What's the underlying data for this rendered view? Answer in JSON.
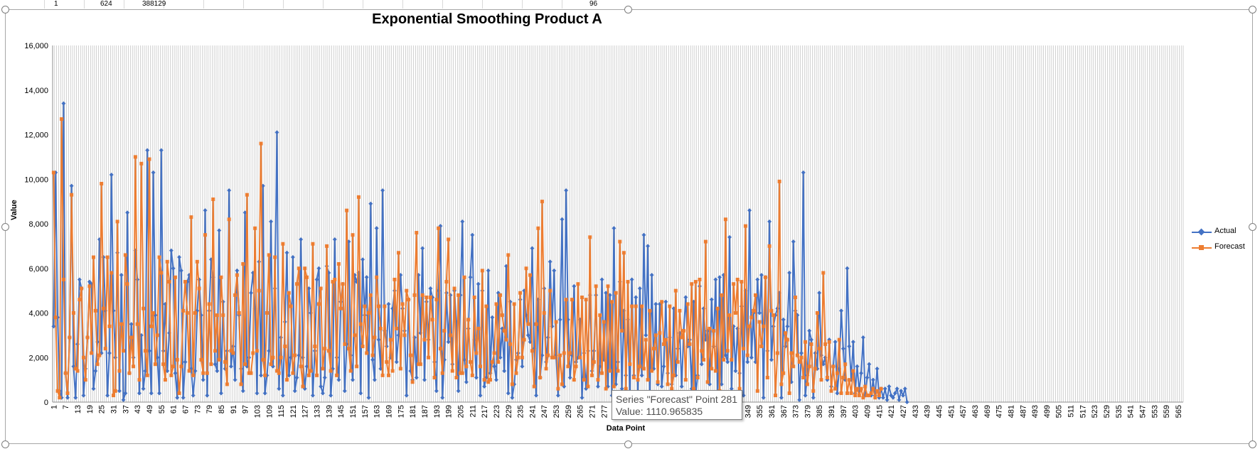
{
  "sheet": {
    "cells": [
      "1",
      "624",
      "388129",
      "96"
    ]
  },
  "tooltip": {
    "line1": "Series \"Forecast\" Point 281",
    "line2": "Value: 1110.965835"
  },
  "chart_data": {
    "type": "line",
    "title": "Exponential Smoothing Product A",
    "xlabel": "Data Point",
    "ylabel": "Value",
    "ylim": [
      0,
      16000
    ],
    "yticks": [
      0,
      2000,
      4000,
      6000,
      8000,
      10000,
      12000,
      14000,
      16000
    ],
    "ytick_labels": [
      "0",
      "2,000",
      "4,000",
      "6,000",
      "8,000",
      "10,000",
      "12,000",
      "14,000",
      "16,000"
    ],
    "x_count": 567,
    "x_tick_labels": [
      "1",
      "7",
      "13",
      "19",
      "25",
      "31",
      "37",
      "43",
      "49",
      "55",
      "61",
      "67",
      "73",
      "79",
      "85",
      "91",
      "97",
      "103",
      "109",
      "115",
      "121",
      "127",
      "133",
      "139",
      "145",
      "151",
      "157",
      "163",
      "169",
      "175",
      "181",
      "187",
      "193",
      "199",
      "205",
      "211",
      "217",
      "223",
      "229",
      "235",
      "241",
      "247",
      "253",
      "259",
      "265",
      "271",
      "277",
      "283",
      "289",
      "295",
      "301",
      "307",
      "313",
      "319",
      "325",
      "331",
      "337",
      "343",
      "349",
      "355",
      "361",
      "367",
      "373",
      "379",
      "385",
      "391",
      "397",
      "403",
      "409",
      "415",
      "421",
      "427",
      "433",
      "439",
      "445",
      "451",
      "457",
      "463",
      "469",
      "475",
      "481",
      "487",
      "493",
      "499",
      "505",
      "511",
      "517",
      "523",
      "529",
      "535",
      "541",
      "547",
      "553",
      "559",
      "565"
    ],
    "grid": "vertical",
    "legend_position": "right",
    "colors": {
      "actual": "#4472C4",
      "forecast": "#ED7D31"
    },
    "series": [
      {
        "name": "Actual",
        "values": [
          3400,
          10300,
          3800,
          500,
          200,
          13400,
          1300,
          200,
          2900,
          9700,
          1600,
          200,
          2600,
          5500,
          5100,
          300,
          1500,
          2900,
          5400,
          5300,
          600,
          1400,
          2700,
          7300,
          2200,
          6500,
          4100,
          300,
          2200,
          10200,
          4100,
          2000,
          6700,
          500,
          5700,
          100,
          400,
          8500,
          1300,
          3500,
          2000,
          6800,
          5500,
          400,
          3000,
          600,
          1400,
          11300,
          2300,
          400,
          10300,
          3900,
          2000,
          400,
          11300,
          2300,
          4400,
          1400,
          3100,
          6800,
          6000,
          1300,
          200,
          6500,
          5900,
          200,
          1800,
          5400,
          5700,
          1500,
          300,
          1400,
          4100,
          5500,
          3900,
          1000,
          8600,
          300,
          4100,
          6400,
          5600,
          1700,
          1400,
          7700,
          400,
          4500,
          1500,
          2300,
          9500,
          1600,
          2500,
          1000,
          5900,
          3900,
          1500,
          500,
          8500,
          1600,
          2000,
          4900,
          5800,
          4200,
          400,
          6300,
          1200,
          9700,
          400,
          1200,
          2300,
          8100,
          1600,
          5100,
          12100,
          600,
          2900,
          300,
          3600,
          6700,
          1200,
          2000,
          6500,
          500,
          1100,
          2100,
          7300,
          2000,
          600,
          1600,
          5100,
          4000,
          300,
          2300,
          5500,
          6000,
          700,
          400,
          1100,
          6100,
          5800,
          300,
          1500,
          7300,
          2000,
          1000,
          4500,
          5300,
          500,
          2600,
          7200,
          2100,
          1000,
          5700,
          5400,
          5800,
          400,
          6400,
          3900,
          5600,
          200,
          8900,
          1900,
          1000,
          7800,
          2800,
          1500,
          9500,
          3200,
          2500,
          4400,
          2000,
          4200,
          5000,
          1800,
          3000,
          5700,
          4200,
          3200,
          300,
          4600,
          1400,
          1000,
          2900,
          1100,
          5700,
          3100,
          6900,
          1000,
          4500,
          2800,
          5100,
          4700,
          1800,
          500,
          5000,
          7900,
          200,
          1900,
          4900,
          2700,
          4800,
          1700,
          5000,
          3600,
          500,
          4800,
          8100,
          1900,
          900,
          3300,
          5600,
          7500,
          2800,
          1100,
          5300,
          300,
          5000,
          700,
          1100,
          5900,
          1300,
          3800,
          1600,
          1000,
          4900,
          2000,
          3300,
          1400,
          6100,
          400,
          4500,
          200,
          800,
          1900,
          2200,
          4600,
          1600,
          5000,
          3900,
          3000,
          2700,
          6900,
          2400,
          300,
          4600,
          1100,
          2100,
          5100,
          1800,
          2900,
          6300,
          3400,
          5900,
          2100,
          300,
          3700,
          8200,
          700,
          9500,
          3700,
          1100,
          2100,
          5200,
          1800,
          2000,
          3700,
          200,
          2200,
          600,
          2300,
          4800,
          1400,
          2300,
          4800,
          700,
          1600,
          5500,
          1900,
          4900,
          700,
          4800,
          300,
          7800,
          800,
          1800,
          5400,
          600,
          4100,
          1200,
          3700,
          200,
          5500,
          1200,
          4700,
          300,
          5100,
          1200,
          7500,
          3000,
          7000,
          100,
          5700,
          1500,
          4400,
          800,
          4400,
          700,
          1600,
          4500,
          1300,
          2900,
          800,
          4200,
          1200,
          2400,
          3100,
          700,
          3200,
          4700,
          2500,
          2800,
          600,
          4500,
          300,
          1200,
          5200,
          1700,
          4200,
          2800,
          3200,
          800,
          4600,
          2500,
          5500,
          300,
          5600,
          800,
          5700,
          2100,
          1800,
          7400,
          600,
          3400,
          1400,
          3300,
          1300,
          4300,
          300,
          5000,
          1800,
          8600,
          2000,
          4000,
          1800,
          5500,
          4000,
          5700,
          200,
          5600,
          2300,
          8100,
          1900,
          3400,
          3900,
          4200,
          4900,
          200,
          3700,
          2500,
          3400,
          5800,
          900,
          7200,
          4100,
          3900,
          100,
          2200,
          10300,
          300,
          1200,
          3200,
          2800,
          200,
          2200,
          1500,
          4900,
          2100,
          1700,
          2000,
          1000,
          2800,
          700,
          1600,
          2700,
          400,
          1500,
          4100,
          2400,
          1000,
          6000,
          2500,
          1000,
          2700,
          400,
          1600,
          500,
          1300,
          2900,
          300,
          1100,
          1700,
          300,
          1000,
          300,
          1500,
          200,
          600,
          200,
          600,
          100,
          700,
          300,
          200,
          400,
          600,
          100,
          500,
          300,
          600,
          0
        ]
      },
      {
        "name": "Forecast",
        "values": [
          10300,
          3800,
          500,
          200,
          12700,
          5500,
          1300,
          400,
          2900,
          9300,
          4000,
          1500,
          1400,
          4600,
          5100,
          2000,
          1000,
          2900,
          5200,
          2200,
          6500,
          4100,
          1700,
          2100,
          9800,
          4200,
          2400,
          6500,
          3400,
          5800,
          300,
          500,
          8100,
          1400,
          3500,
          2300,
          6600,
          5300,
          1300,
          2900,
          1600,
          11000,
          3500,
          1000,
          10700,
          4200,
          2300,
          1200,
          10900,
          3400,
          4000,
          1700,
          3000,
          6500,
          5800,
          1700,
          1000,
          6300,
          5400,
          1200,
          1600,
          5600,
          1900,
          400,
          1600,
          4100,
          5400,
          4000,
          1400,
          8300,
          1200,
          4000,
          6300,
          5100,
          1900,
          1300,
          7500,
          1300,
          4400,
          1700,
          9100,
          2300,
          3900,
          1900,
          5600,
          3900,
          1800,
          800,
          8200,
          2300,
          2200,
          4800,
          5700,
          4000,
          800,
          6200,
          1700,
          9300,
          1300,
          1300,
          2200,
          7800,
          2300,
          5000,
          11600,
          1900,
          1200,
          4000,
          6600,
          1700,
          2000,
          6500,
          1400,
          1300,
          2000,
          7100,
          2500,
          1000,
          4900,
          4300,
          1300,
          2100,
          5300,
          6000,
          1600,
          700,
          6000,
          5600,
          1200,
          1400,
          7100,
          2500,
          1200,
          4400,
          5100,
          1500,
          2400,
          7000,
          2300,
          1400,
          5400,
          5500,
          1200,
          6200,
          4200,
          5300,
          2600,
          8600,
          2400,
          1400,
          7500,
          3000,
          1600,
          9200,
          3500,
          2500,
          4300,
          2200,
          4000,
          4800,
          2100,
          2900,
          5600,
          4300,
          3300,
          1200,
          4300,
          1800,
          1200,
          2800,
          1400,
          5500,
          3300,
          6700,
          1500,
          4400,
          3000,
          5000,
          4600,
          2100,
          900,
          4800,
          7600,
          1700,
          1700,
          4800,
          2800,
          4700,
          2000,
          4700,
          3700,
          1100,
          4600,
          7800,
          2400,
          1300,
          3200,
          5400,
          7300,
          3000,
          1400,
          5100,
          1100,
          4800,
          1300,
          1300,
          5600,
          1600,
          3700,
          1800,
          1200,
          4700,
          2200,
          3300,
          1600,
          5900,
          1000,
          4300,
          900,
          1000,
          1800,
          2200,
          4400,
          1800,
          4800,
          3900,
          3200,
          2800,
          6600,
          2600,
          800,
          4400,
          1300,
          2000,
          4900,
          2000,
          2800,
          6000,
          3500,
          5700,
          2300,
          700,
          3500,
          7800,
          1100,
          9000,
          4000,
          1500,
          2100,
          5000,
          2000,
          2000,
          3600,
          600,
          2100,
          800,
          2200,
          4600,
          1600,
          2200,
          4600,
          1000,
          1600,
          5300,
          2000,
          4700,
          1000,
          4600,
          700,
          7400,
          1200,
          1800,
          5200,
          1000,
          3900,
          1300,
          3600,
          600,
          5200,
          1400,
          4500,
          700,
          4900,
          1400,
          7200,
          3200,
          6700,
          600,
          5400,
          1700,
          4300,
          1100,
          4300,
          1000,
          1600,
          4300,
          1500,
          2800,
          1000,
          4100,
          1400,
          2400,
          3000,
          900,
          3100,
          4500,
          2600,
          2800,
          800,
          4300,
          600,
          1200,
          5000,
          1800,
          4100,
          2900,
          3200,
          1000,
          4400,
          2600,
          5300,
          600,
          5400,
          1100,
          5500,
          2300,
          1900,
          7200,
          900,
          3300,
          1500,
          3200,
          1400,
          4200,
          500,
          4800,
          1900,
          8200,
          2300,
          3900,
          1900,
          5300,
          4000,
          5500,
          600,
          5400,
          2400,
          7900,
          2100,
          3400,
          3800,
          4100,
          4800,
          500,
          3600,
          2500,
          3400,
          5600,
          1100,
          7000,
          4100,
          3900,
          300,
          2200,
          9900,
          800,
          1300,
          3100,
          2800,
          400,
          2200,
          1600,
          4700,
          2100,
          1800,
          2000,
          1100,
          2700,
          800,
          1600,
          2600,
          500,
          1500,
          4000,
          2400,
          1000,
          5800,
          2600,
          1100,
          2700,
          500,
          1600,
          600,
          1300,
          2800,
          400,
          1100,
          1700,
          400,
          1000,
          400,
          1400,
          300,
          600,
          300,
          600,
          200,
          700,
          300,
          300,
          400,
          600,
          200,
          500,
          300,
          600
        ]
      }
    ]
  }
}
